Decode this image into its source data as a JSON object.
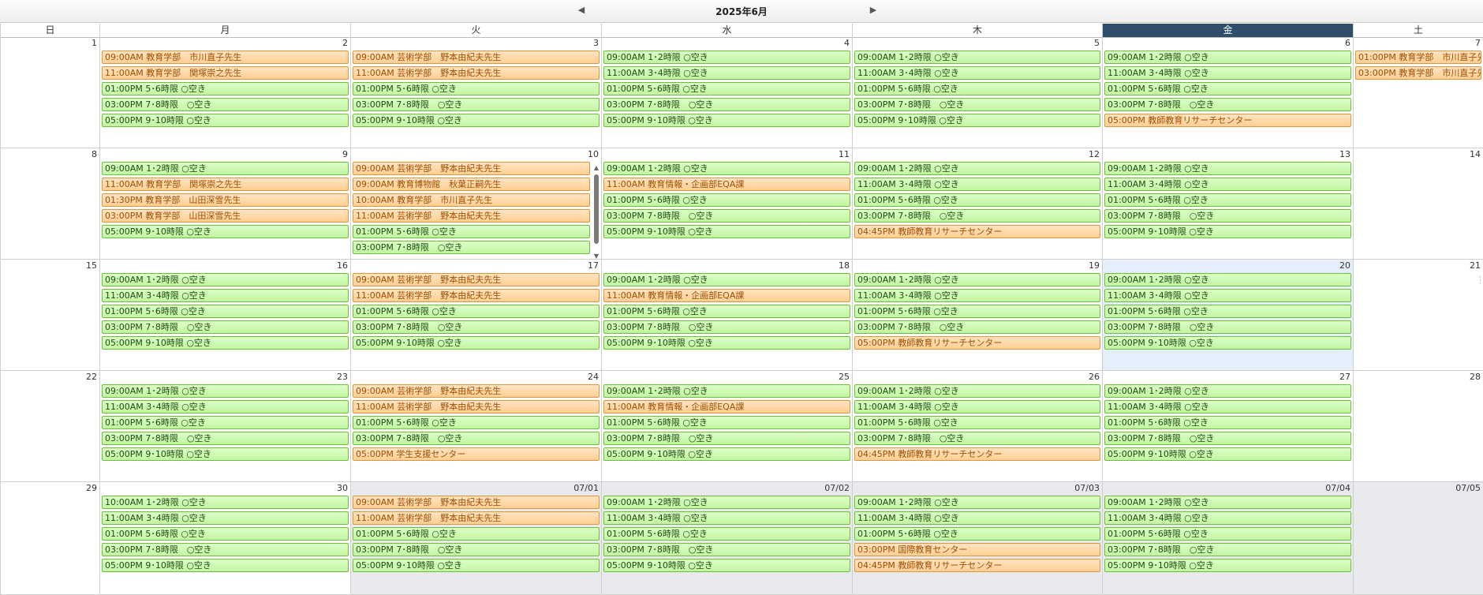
{
  "header": {
    "month_title": "2025年6月",
    "prev_icon": "chevron-left-icon",
    "next_icon": "chevron-right-icon"
  },
  "weekdays": [
    "日",
    "月",
    "火",
    "水",
    "木",
    "金",
    "土"
  ],
  "today_weekday_index": 5,
  "colors": {
    "free": "#c2f5a3",
    "booked": "#ffcf93",
    "today_header": "#2e4e6c",
    "today_cell": "#e4effb",
    "other_month": "#e8eaee"
  },
  "weeks": [
    {
      "days": [
        {
          "date": "1",
          "events": []
        },
        {
          "date": "2",
          "events": [
            {
              "time": "09:00AM",
              "text": "教育学部　市川直子先生",
              "status": "booked"
            },
            {
              "time": "11:00AM",
              "text": "教育学部　関塚崇之先生",
              "status": "booked"
            },
            {
              "time": "01:00PM",
              "text": "5･6時限 ○空き",
              "status": "free"
            },
            {
              "time": "03:00PM",
              "text": "7･8時限　○空き",
              "status": "free"
            },
            {
              "time": "05:00PM",
              "text": "9･10時限 ○空き",
              "status": "free"
            }
          ]
        },
        {
          "date": "3",
          "events": [
            {
              "time": "09:00AM",
              "text": "芸術学部　野本由紀夫先生",
              "status": "booked"
            },
            {
              "time": "11:00AM",
              "text": "芸術学部　野本由紀夫先生",
              "status": "booked"
            },
            {
              "time": "01:00PM",
              "text": "5･6時限 ○空き",
              "status": "free"
            },
            {
              "time": "03:00PM",
              "text": "7･8時限　○空き",
              "status": "free"
            },
            {
              "time": "05:00PM",
              "text": "9･10時限 ○空き",
              "status": "free"
            }
          ]
        },
        {
          "date": "4",
          "events": [
            {
              "time": "09:00AM",
              "text": "1･2時限 ○空き",
              "status": "free"
            },
            {
              "time": "11:00AM",
              "text": "3･4時限 ○空き",
              "status": "free"
            },
            {
              "time": "01:00PM",
              "text": "5･6時限 ○空き",
              "status": "free"
            },
            {
              "time": "03:00PM",
              "text": "7･8時限　○空き",
              "status": "free"
            },
            {
              "time": "05:00PM",
              "text": "9･10時限 ○空き",
              "status": "free"
            }
          ]
        },
        {
          "date": "5",
          "events": [
            {
              "time": "09:00AM",
              "text": "1･2時限 ○空き",
              "status": "free"
            },
            {
              "time": "11:00AM",
              "text": "3･4時限 ○空き",
              "status": "free"
            },
            {
              "time": "01:00PM",
              "text": "5･6時限 ○空き",
              "status": "free"
            },
            {
              "time": "03:00PM",
              "text": "7･8時限　○空き",
              "status": "free"
            },
            {
              "time": "05:00PM",
              "text": "9･10時限 ○空き",
              "status": "free"
            }
          ]
        },
        {
          "date": "6",
          "events": [
            {
              "time": "09:00AM",
              "text": "1･2時限 ○空き",
              "status": "free"
            },
            {
              "time": "11:00AM",
              "text": "3･4時限 ○空き",
              "status": "free"
            },
            {
              "time": "01:00PM",
              "text": "5･6時限 ○空き",
              "status": "free"
            },
            {
              "time": "03:00PM",
              "text": "7･8時限　○空き",
              "status": "free"
            },
            {
              "time": "05:00PM",
              "text": "教師教育リサーチセンター",
              "status": "booked"
            }
          ]
        },
        {
          "date": "7",
          "events": [
            {
              "time": "01:00PM",
              "text": "教育学部　市川直子先生",
              "status": "booked"
            },
            {
              "time": "03:00PM",
              "text": "教育学部　市川直子先生",
              "status": "booked"
            }
          ]
        }
      ]
    },
    {
      "days": [
        {
          "date": "8",
          "events": []
        },
        {
          "date": "9",
          "events": [
            {
              "time": "09:00AM",
              "text": "1･2時限 ○空き",
              "status": "free"
            },
            {
              "time": "11:00AM",
              "text": "教育学部　関塚崇之先生",
              "status": "booked"
            },
            {
              "time": "01:30PM",
              "text": "教育学部　山田深雪先生",
              "status": "booked"
            },
            {
              "time": "03:00PM",
              "text": "教育学部　山田深雪先生",
              "status": "booked"
            },
            {
              "time": "05:00PM",
              "text": "9･10時限 ○空き",
              "status": "free"
            }
          ]
        },
        {
          "date": "10",
          "scroll": true,
          "events": [
            {
              "time": "09:00AM",
              "text": "芸術学部　野本由紀夫先生",
              "status": "booked"
            },
            {
              "time": "09:00AM",
              "text": "教育博物館　秋葉正嗣先生",
              "status": "booked"
            },
            {
              "time": "10:00AM",
              "text": "教育学部　市川直子先生",
              "status": "booked"
            },
            {
              "time": "11:00AM",
              "text": "芸術学部　野本由紀夫先生",
              "status": "booked"
            },
            {
              "time": "01:00PM",
              "text": "5･6時限 ○空き",
              "status": "free"
            },
            {
              "time": "03:00PM",
              "text": "7･8時限　○空き",
              "status": "free"
            }
          ]
        },
        {
          "date": "11",
          "events": [
            {
              "time": "09:00AM",
              "text": "1･2時限 ○空き",
              "status": "free"
            },
            {
              "time": "11:00AM",
              "text": "教育情報・企画部EQA課",
              "status": "booked"
            },
            {
              "time": "01:00PM",
              "text": "5･6時限 ○空き",
              "status": "free"
            },
            {
              "time": "03:00PM",
              "text": "7･8時限　○空き",
              "status": "free"
            },
            {
              "time": "05:00PM",
              "text": "9･10時限 ○空き",
              "status": "free"
            }
          ]
        },
        {
          "date": "12",
          "events": [
            {
              "time": "09:00AM",
              "text": "1･2時限 ○空き",
              "status": "free"
            },
            {
              "time": "11:00AM",
              "text": "3･4時限 ○空き",
              "status": "free"
            },
            {
              "time": "01:00PM",
              "text": "5･6時限 ○空き",
              "status": "free"
            },
            {
              "time": "03:00PM",
              "text": "7･8時限　○空き",
              "status": "free"
            },
            {
              "time": "04:45PM",
              "text": "教師教育リサーチセンター",
              "status": "booked"
            }
          ]
        },
        {
          "date": "13",
          "events": [
            {
              "time": "09:00AM",
              "text": "1･2時限 ○空き",
              "status": "free"
            },
            {
              "time": "11:00AM",
              "text": "3･4時限 ○空き",
              "status": "free"
            },
            {
              "time": "01:00PM",
              "text": "5･6時限 ○空き",
              "status": "free"
            },
            {
              "time": "03:00PM",
              "text": "7･8時限　○空き",
              "status": "free"
            },
            {
              "time": "05:00PM",
              "text": "9･10時限 ○空き",
              "status": "free"
            }
          ]
        },
        {
          "date": "14",
          "events": []
        }
      ]
    },
    {
      "days": [
        {
          "date": "15",
          "events": []
        },
        {
          "date": "16",
          "events": [
            {
              "time": "09:00AM",
              "text": "1･2時限 ○空き",
              "status": "free"
            },
            {
              "time": "11:00AM",
              "text": "3･4時限 ○空き",
              "status": "free"
            },
            {
              "time": "01:00PM",
              "text": "5･6時限 ○空き",
              "status": "free"
            },
            {
              "time": "03:00PM",
              "text": "7･8時限　○空き",
              "status": "free"
            },
            {
              "time": "05:00PM",
              "text": "9･10時限 ○空き",
              "status": "free"
            }
          ]
        },
        {
          "date": "17",
          "events": [
            {
              "time": "09:00AM",
              "text": "芸術学部　野本由紀夫先生",
              "status": "booked"
            },
            {
              "time": "11:00AM",
              "text": "芸術学部　野本由紀夫先生",
              "status": "booked"
            },
            {
              "time": "01:00PM",
              "text": "5･6時限 ○空き",
              "status": "free"
            },
            {
              "time": "03:00PM",
              "text": "7･8時限　○空き",
              "status": "free"
            },
            {
              "time": "05:00PM",
              "text": "9･10時限 ○空き",
              "status": "free"
            }
          ]
        },
        {
          "date": "18",
          "events": [
            {
              "time": "09:00AM",
              "text": "1･2時限 ○空き",
              "status": "free"
            },
            {
              "time": "11:00AM",
              "text": "教育情報・企画部EQA課",
              "status": "booked"
            },
            {
              "time": "01:00PM",
              "text": "5･6時限 ○空き",
              "status": "free"
            },
            {
              "time": "03:00PM",
              "text": "7･8時限　○空き",
              "status": "free"
            },
            {
              "time": "05:00PM",
              "text": "9･10時限 ○空き",
              "status": "free"
            }
          ]
        },
        {
          "date": "19",
          "events": [
            {
              "time": "09:00AM",
              "text": "1･2時限 ○空き",
              "status": "free"
            },
            {
              "time": "11:00AM",
              "text": "3･4時限 ○空き",
              "status": "free"
            },
            {
              "time": "01:00PM",
              "text": "5･6時限 ○空き",
              "status": "free"
            },
            {
              "time": "03:00PM",
              "text": "7･8時限　○空き",
              "status": "free"
            },
            {
              "time": "05:00PM",
              "text": "教師教育リサーチセンター",
              "status": "booked"
            }
          ]
        },
        {
          "date": "20",
          "today": true,
          "events": [
            {
              "time": "09:00AM",
              "text": "1･2時限 ○空き",
              "status": "free"
            },
            {
              "time": "11:00AM",
              "text": "3･4時限 ○空き",
              "status": "free"
            },
            {
              "time": "01:00PM",
              "text": "5･6時限 ○空き",
              "status": "free"
            },
            {
              "time": "03:00PM",
              "text": "7･8時限　○空き",
              "status": "free"
            },
            {
              "time": "05:00PM",
              "text": "9･10時限 ○空き",
              "status": "free"
            }
          ]
        },
        {
          "date": "21",
          "events": []
        }
      ]
    },
    {
      "days": [
        {
          "date": "22",
          "events": []
        },
        {
          "date": "23",
          "events": [
            {
              "time": "09:00AM",
              "text": "1･2時限 ○空き",
              "status": "free"
            },
            {
              "time": "11:00AM",
              "text": "3･4時限 ○空き",
              "status": "free"
            },
            {
              "time": "01:00PM",
              "text": "5･6時限 ○空き",
              "status": "free"
            },
            {
              "time": "03:00PM",
              "text": "7･8時限　○空き",
              "status": "free"
            },
            {
              "time": "05:00PM",
              "text": "9･10時限 ○空き",
              "status": "free"
            }
          ]
        },
        {
          "date": "24",
          "events": [
            {
              "time": "09:00AM",
              "text": "芸術学部　野本由紀夫先生",
              "status": "booked"
            },
            {
              "time": "11:00AM",
              "text": "芸術学部　野本由紀夫先生",
              "status": "booked"
            },
            {
              "time": "01:00PM",
              "text": "5･6時限 ○空き",
              "status": "free"
            },
            {
              "time": "03:00PM",
              "text": "7･8時限　○空き",
              "status": "free"
            },
            {
              "time": "05:00PM",
              "text": "学生支援センター",
              "status": "booked"
            }
          ]
        },
        {
          "date": "25",
          "events": [
            {
              "time": "09:00AM",
              "text": "1･2時限 ○空き",
              "status": "free"
            },
            {
              "time": "11:00AM",
              "text": "教育情報・企画部EQA課",
              "status": "booked"
            },
            {
              "time": "01:00PM",
              "text": "5･6時限 ○空き",
              "status": "free"
            },
            {
              "time": "03:00PM",
              "text": "7･8時限　○空き",
              "status": "free"
            },
            {
              "time": "05:00PM",
              "text": "9･10時限 ○空き",
              "status": "free"
            }
          ]
        },
        {
          "date": "26",
          "events": [
            {
              "time": "09:00AM",
              "text": "1･2時限 ○空き",
              "status": "free"
            },
            {
              "time": "11:00AM",
              "text": "3･4時限 ○空き",
              "status": "free"
            },
            {
              "time": "01:00PM",
              "text": "5･6時限 ○空き",
              "status": "free"
            },
            {
              "time": "03:00PM",
              "text": "7･8時限　○空き",
              "status": "free"
            },
            {
              "time": "04:45PM",
              "text": "教師教育リサーチセンター",
              "status": "booked"
            }
          ]
        },
        {
          "date": "27",
          "events": [
            {
              "time": "09:00AM",
              "text": "1･2時限 ○空き",
              "status": "free"
            },
            {
              "time": "11:00AM",
              "text": "3･4時限 ○空き",
              "status": "free"
            },
            {
              "time": "01:00PM",
              "text": "5･6時限 ○空き",
              "status": "free"
            },
            {
              "time": "03:00PM",
              "text": "7･8時限　○空き",
              "status": "free"
            },
            {
              "time": "05:00PM",
              "text": "9･10時限 ○空き",
              "status": "free"
            }
          ]
        },
        {
          "date": "28",
          "events": []
        }
      ]
    },
    {
      "days": [
        {
          "date": "29",
          "events": []
        },
        {
          "date": "30",
          "events": [
            {
              "time": "10:00AM",
              "text": "1･2時限 ○空き",
              "status": "free"
            },
            {
              "time": "11:00AM",
              "text": "3･4時限 ○空き",
              "status": "free"
            },
            {
              "time": "01:00PM",
              "text": "5･6時限 ○空き",
              "status": "free"
            },
            {
              "time": "03:00PM",
              "text": "7･8時限　○空き",
              "status": "free"
            },
            {
              "time": "05:00PM",
              "text": "9･10時限 ○空き",
              "status": "free"
            }
          ]
        },
        {
          "date": "07/01",
          "other": true,
          "events": [
            {
              "time": "09:00AM",
              "text": "芸術学部　野本由紀夫先生",
              "status": "booked"
            },
            {
              "time": "11:00AM",
              "text": "芸術学部　野本由紀夫先生",
              "status": "booked"
            },
            {
              "time": "01:00PM",
              "text": "5･6時限 ○空き",
              "status": "free"
            },
            {
              "time": "03:00PM",
              "text": "7･8時限　○空き",
              "status": "free"
            },
            {
              "time": "05:00PM",
              "text": "9･10時限 ○空き",
              "status": "free"
            }
          ]
        },
        {
          "date": "07/02",
          "other": true,
          "events": [
            {
              "time": "09:00AM",
              "text": "1･2時限 ○空き",
              "status": "free"
            },
            {
              "time": "11:00AM",
              "text": "3･4時限 ○空き",
              "status": "free"
            },
            {
              "time": "01:00PM",
              "text": "5･6時限 ○空き",
              "status": "free"
            },
            {
              "time": "03:00PM",
              "text": "7･8時限　○空き",
              "status": "free"
            },
            {
              "time": "05:00PM",
              "text": "9･10時限 ○空き",
              "status": "free"
            }
          ]
        },
        {
          "date": "07/03",
          "other": true,
          "events": [
            {
              "time": "09:00AM",
              "text": "1･2時限 ○空き",
              "status": "free"
            },
            {
              "time": "11:00AM",
              "text": "3･4時限 ○空き",
              "status": "free"
            },
            {
              "time": "01:00PM",
              "text": "5･6時限 ○空き",
              "status": "free"
            },
            {
              "time": "03:00PM",
              "text": "国際教育センター",
              "status": "booked"
            },
            {
              "time": "04:45PM",
              "text": "教師教育リサーチセンター",
              "status": "booked"
            }
          ]
        },
        {
          "date": "07/04",
          "other": true,
          "events": [
            {
              "time": "09:00AM",
              "text": "1･2時限 ○空き",
              "status": "free"
            },
            {
              "time": "11:00AM",
              "text": "3･4時限 ○空き",
              "status": "free"
            },
            {
              "time": "01:00PM",
              "text": "5･6時限 ○空き",
              "status": "free"
            },
            {
              "time": "03:00PM",
              "text": "7･8時限　○空き",
              "status": "free"
            },
            {
              "time": "05:00PM",
              "text": "9･10時限 ○空き",
              "status": "free"
            }
          ]
        },
        {
          "date": "07/05",
          "other": true,
          "events": []
        }
      ]
    }
  ]
}
